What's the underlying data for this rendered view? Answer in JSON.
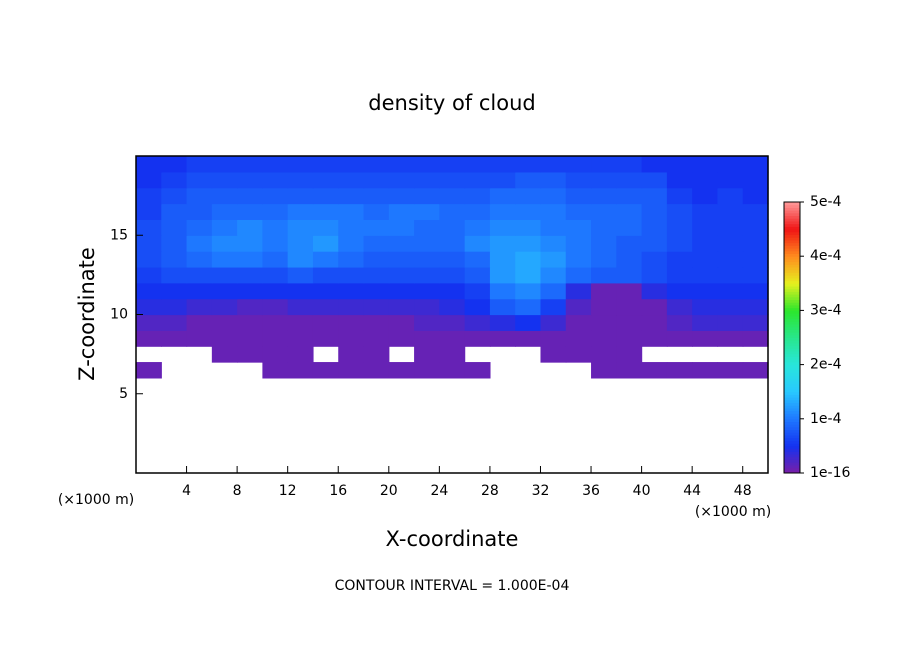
{
  "chart_data": {
    "type": "contour",
    "title": "density of cloud",
    "x_label": "X-coordinate",
    "y_label": "Z-coordinate",
    "x_unit": "(×1000 m)",
    "footer": "CONTOUR INTERVAL = 1.000E-04",
    "xlim": [
      0,
      50
    ],
    "xticks": [
      4,
      8,
      12,
      16,
      20,
      24,
      28,
      32,
      36,
      40,
      44,
      48
    ],
    "ylim": [
      0,
      20
    ],
    "yticks": [
      5,
      10,
      15
    ],
    "clim": [
      1e-16,
      0.0005
    ],
    "cticks": [
      {
        "value": 1e-16,
        "label": "1e-16"
      },
      {
        "value": 0.0001,
        "label": "1e-4"
      },
      {
        "value": 0.0002,
        "label": "2e-4"
      },
      {
        "value": 0.0003,
        "label": "3e-4"
      },
      {
        "value": 0.0004,
        "label": "4e-4"
      },
      {
        "value": 0.0005,
        "label": "5e-4"
      }
    ],
    "colormap": [
      "#7a1ea6",
      "#1432f0",
      "#1e78ff",
      "#28c8ff",
      "#28e6dc",
      "#28e68c",
      "#2ce62c",
      "#e6f01e",
      "#ff8c1e",
      "#f01414",
      "#ff9a9a"
    ],
    "x_edges": [
      0,
      2,
      4,
      6,
      8,
      10,
      12,
      14,
      16,
      18,
      20,
      22,
      24,
      26,
      28,
      30,
      32,
      34,
      36,
      38,
      40,
      42,
      44,
      46,
      48,
      50
    ],
    "y_edges": [
      6,
      7,
      8,
      9,
      10,
      11,
      12,
      13,
      14,
      15,
      16,
      17,
      18,
      19,
      20
    ],
    "z": [
      [
        1e-05,
        null,
        null,
        null,
        null,
        1e-05,
        1e-05,
        1e-05,
        1e-05,
        1e-05,
        1e-05,
        1e-05,
        1e-05,
        1e-05,
        null,
        null,
        null,
        null,
        1e-05,
        1e-05,
        1e-05,
        1e-05,
        1e-05,
        1e-05,
        1e-05
      ],
      [
        null,
        null,
        null,
        1e-05,
        1e-05,
        1e-05,
        1e-05,
        null,
        1e-05,
        1e-05,
        null,
        1e-05,
        1e-05,
        null,
        null,
        null,
        1e-05,
        1e-05,
        1e-05,
        1e-05,
        null,
        null,
        null,
        null,
        null
      ],
      [
        1e-05,
        1e-05,
        1e-05,
        1e-05,
        1e-05,
        1e-05,
        1e-05,
        1e-05,
        1e-05,
        1e-05,
        1e-05,
        1e-05,
        1e-05,
        1e-05,
        1e-05,
        1e-05,
        1e-05,
        1e-05,
        1e-05,
        1e-05,
        1e-05,
        1e-05,
        1e-05,
        1e-05,
        1e-05
      ],
      [
        2e-05,
        2e-05,
        1e-05,
        1e-05,
        1e-05,
        1e-05,
        1e-05,
        1e-05,
        1e-05,
        1e-05,
        1e-05,
        2e-05,
        2e-05,
        3e-05,
        4e-05,
        5e-05,
        3e-05,
        1e-05,
        1e-05,
        1e-05,
        1e-05,
        2e-05,
        3e-05,
        3e-05,
        3e-05
      ],
      [
        4e-05,
        4e-05,
        3e-05,
        3e-05,
        2e-05,
        2e-05,
        3e-05,
        3e-05,
        3e-05,
        3e-05,
        3e-05,
        3e-05,
        4e-05,
        5e-05,
        8e-05,
        9e-05,
        6e-05,
        2e-05,
        1e-05,
        1e-05,
        1e-05,
        3e-05,
        4e-05,
        4e-05,
        4e-05
      ],
      [
        5e-05,
        5e-05,
        5e-05,
        5e-05,
        5e-05,
        5e-05,
        5e-05,
        5e-05,
        5e-05,
        5e-05,
        5e-05,
        5e-05,
        5e-05,
        6e-05,
        0.0001,
        0.00011,
        9e-05,
        4e-05,
        1e-05,
        1e-05,
        4e-05,
        5e-05,
        5e-05,
        5e-05,
        5e-05
      ],
      [
        6e-05,
        7e-05,
        7e-05,
        7e-05,
        7e-05,
        7e-05,
        8e-05,
        7e-05,
        7e-05,
        7e-05,
        7e-05,
        7e-05,
        7e-05,
        8e-05,
        0.00012,
        0.00013,
        0.00011,
        9e-05,
        8e-05,
        8e-05,
        7e-05,
        6e-05,
        6e-05,
        6e-05,
        6e-05
      ],
      [
        7e-05,
        8e-05,
        9e-05,
        0.0001,
        0.0001,
        9e-05,
        0.00011,
        0.0001,
        9e-05,
        8e-05,
        8e-05,
        8e-05,
        8e-05,
        9e-05,
        0.00012,
        0.00013,
        0.00012,
        0.0001,
        9e-05,
        8e-05,
        7e-05,
        6e-05,
        6e-05,
        6e-05,
        6e-05
      ],
      [
        7e-05,
        8e-05,
        0.0001,
        0.00011,
        0.00011,
        0.0001,
        0.00011,
        0.00012,
        0.0001,
        9e-05,
        9e-05,
        9e-05,
        9e-05,
        0.00011,
        0.00012,
        0.00012,
        0.00011,
        0.0001,
        9e-05,
        8e-05,
        8e-05,
        7e-05,
        6e-05,
        6e-05,
        6e-05
      ],
      [
        7e-05,
        8e-05,
        9e-05,
        0.0001,
        0.00011,
        0.0001,
        0.00011,
        0.00011,
        0.0001,
        0.0001,
        0.0001,
        9e-05,
        9e-05,
        0.0001,
        0.00011,
        0.00011,
        0.0001,
        0.0001,
        9e-05,
        9e-05,
        8e-05,
        7e-05,
        6e-05,
        6e-05,
        6e-05
      ],
      [
        6e-05,
        8e-05,
        8e-05,
        9e-05,
        9e-05,
        9e-05,
        0.0001,
        0.0001,
        0.0001,
        9e-05,
        0.0001,
        0.0001,
        9e-05,
        9e-05,
        0.0001,
        0.0001,
        0.0001,
        9e-05,
        9e-05,
        9e-05,
        8e-05,
        7e-05,
        6e-05,
        6e-05,
        6e-05
      ],
      [
        6e-05,
        7e-05,
        8e-05,
        8e-05,
        8e-05,
        8e-05,
        8e-05,
        8e-05,
        8e-05,
        8e-05,
        8e-05,
        8e-05,
        8e-05,
        8e-05,
        9e-05,
        9e-05,
        9e-05,
        8e-05,
        8e-05,
        8e-05,
        8e-05,
        6e-05,
        5e-05,
        6e-05,
        5e-05
      ],
      [
        5e-05,
        6e-05,
        7e-05,
        7e-05,
        7e-05,
        7e-05,
        7e-05,
        7e-05,
        7e-05,
        7e-05,
        7e-05,
        7e-05,
        7e-05,
        7e-05,
        7e-05,
        8e-05,
        8e-05,
        7e-05,
        7e-05,
        7e-05,
        7e-05,
        5e-05,
        5e-05,
        5e-05,
        5e-05
      ],
      [
        5e-05,
        5e-05,
        6e-05,
        6e-05,
        6e-05,
        6e-05,
        6e-05,
        6e-05,
        6e-05,
        6e-05,
        6e-05,
        6e-05,
        6e-05,
        6e-05,
        6e-05,
        6e-05,
        6e-05,
        6e-05,
        6e-05,
        6e-05,
        5e-05,
        5e-05,
        5e-05,
        5e-05,
        5e-05
      ]
    ]
  }
}
